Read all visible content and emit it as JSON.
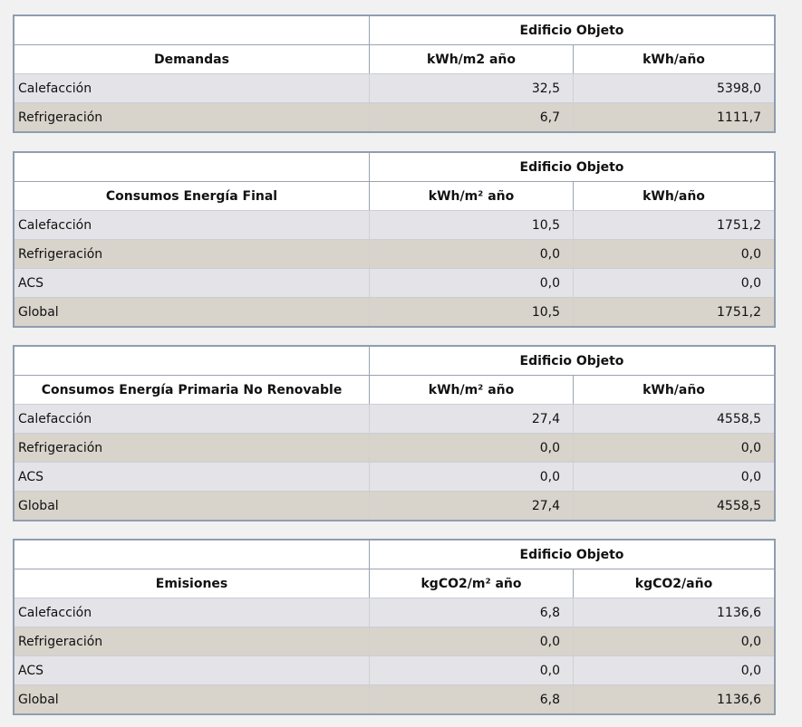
{
  "tables": [
    {
      "group_header": "Edificio Objeto",
      "headers": [
        "Demandas",
        "kWh/m2 año",
        "kWh/año"
      ],
      "rows": [
        [
          "Calefacción",
          "32,5",
          "5398,0"
        ],
        [
          "Refrigeración",
          "6,7",
          "1111,7"
        ]
      ]
    },
    {
      "group_header": "Edificio Objeto",
      "headers": [
        "Consumos Energía Final",
        "kWh/m² año",
        "kWh/año"
      ],
      "rows": [
        [
          "Calefacción",
          "10,5",
          "1751,2"
        ],
        [
          "Refrigeración",
          "0,0",
          "0,0"
        ],
        [
          "ACS",
          "0,0",
          "0,0"
        ],
        [
          "Global",
          "10,5",
          "1751,2"
        ]
      ]
    },
    {
      "group_header": "Edificio Objeto",
      "headers": [
        "Consumos Energía Primaria No Renovable",
        "kWh/m² año",
        "kWh/año"
      ],
      "rows": [
        [
          "Calefacción",
          "27,4",
          "4558,5"
        ],
        [
          "Refrigeración",
          "0,0",
          "0,0"
        ],
        [
          "ACS",
          "0,0",
          "0,0"
        ],
        [
          "Global",
          "27,4",
          "4558,5"
        ]
      ]
    },
    {
      "group_header": "Edificio Objeto",
      "headers": [
        "Emisiones",
        "kgCO2/m² año",
        "kgCO2/año"
      ],
      "rows": [
        [
          "Calefacción",
          "6,8",
          "1136,6"
        ],
        [
          "Refrigeración",
          "0,0",
          "0,0"
        ],
        [
          "ACS",
          "0,0",
          "0,0"
        ],
        [
          "Global",
          "6,8",
          "1136,6"
        ]
      ]
    }
  ]
}
